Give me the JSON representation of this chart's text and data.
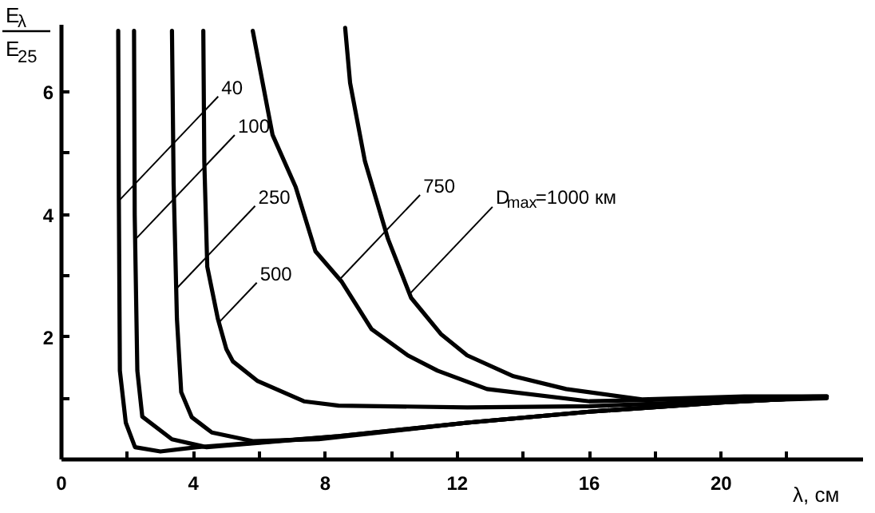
{
  "chart_data": {
    "type": "line",
    "xlabel": "λ, см",
    "ylabel": "E$_{λ}$\nE$_{25}$",
    "xlim": [
      0,
      24.3
    ],
    "ylim": [
      0,
      7.1
    ],
    "xticks": [
      0,
      {
        "value": 2,
        "label": null
      },
      4,
      {
        "value": 6,
        "label": null
      },
      8,
      {
        "value": 10,
        "label": null
      },
      12,
      {
        "value": 14,
        "label": null
      },
      16,
      {
        "value": 18,
        "label": null
      },
      20,
      {
        "value": 22,
        "label": null
      }
    ],
    "yticks": [
      {
        "value": 1,
        "label": null
      },
      2,
      {
        "value": 3,
        "label": null
      },
      4,
      {
        "value": 5,
        "label": null
      },
      6
    ],
    "marker": "none",
    "line_style": "solid",
    "series": [
      {
        "color": "#000000",
        "x": [
          1.72,
          1.74,
          1.77,
          1.95,
          2.23,
          3.0,
          4.1,
          8.4,
          12.3,
          16,
          20,
          23.2
        ],
        "values": [
          7.0,
          4.2,
          1.45,
          0.6,
          0.2,
          0.13,
          0.2,
          0.38,
          0.6,
          0.78,
          0.93,
          1.02
        ]
      },
      {
        "color": "#000000",
        "x": [
          2.2,
          2.22,
          2.3,
          2.45,
          3.35,
          4.4,
          8.4,
          12.3,
          16,
          20,
          23.2
        ],
        "values": [
          7.0,
          4.0,
          1.45,
          0.7,
          0.33,
          0.2,
          0.38,
          0.6,
          0.78,
          0.93,
          1.02
        ]
      },
      {
        "color": "#000000",
        "x": [
          3.35,
          3.4,
          3.5,
          3.63,
          3.95,
          4.56,
          5.8,
          7.8,
          12.3,
          16,
          20,
          23.2
        ],
        "values": [
          7.0,
          4.5,
          2.3,
          1.1,
          0.69,
          0.44,
          0.3,
          0.33,
          0.6,
          0.78,
          0.93,
          1.02
        ]
      },
      {
        "color": "#000000",
        "x": [
          4.3,
          4.33,
          4.42,
          4.74,
          5.0,
          5.2,
          5.95,
          7.35,
          8.4,
          12.3,
          16,
          20,
          23.2
        ],
        "values": [
          7.0,
          4.87,
          3.15,
          2.3,
          1.8,
          1.6,
          1.28,
          0.95,
          0.88,
          0.85,
          0.87,
          0.95,
          1.0
        ]
      },
      {
        "color": "#000000",
        "x": [
          5.8,
          6.4,
          7.1,
          7.7,
          8.5,
          9.4,
          10.5,
          11.4,
          12.9,
          16.0,
          20,
          23.2
        ],
        "values": [
          7.0,
          5.3,
          4.45,
          3.4,
          2.9,
          2.13,
          1.7,
          1.45,
          1.15,
          0.95,
          1.0,
          1.03
        ]
      },
      {
        "color": "#000000",
        "x": [
          8.6,
          8.75,
          9.2,
          9.9,
          10.6,
          11.5,
          12.3,
          13.7,
          15.3,
          17.6,
          20.7,
          23.2
        ],
        "values": [
          7.05,
          6.15,
          4.87,
          3.6,
          2.64,
          2.05,
          1.7,
          1.36,
          1.15,
          0.98,
          1.03,
          1.03
        ]
      }
    ],
    "annotations": [
      {
        "text": "40",
        "x": 1.75,
        "y": 4.23
      },
      {
        "text": "100",
        "x": 2.25,
        "y": 3.6
      },
      {
        "text": "250",
        "x": 3.45,
        "y": 2.77
      },
      {
        "text": "500",
        "x": 4.76,
        "y": 2.23
      },
      {
        "text": "750",
        "x": 8.45,
        "y": 2.95
      },
      {
        "text": "D$_{max}$=1000 км",
        "x": 10.55,
        "y": 2.7
      }
    ]
  }
}
